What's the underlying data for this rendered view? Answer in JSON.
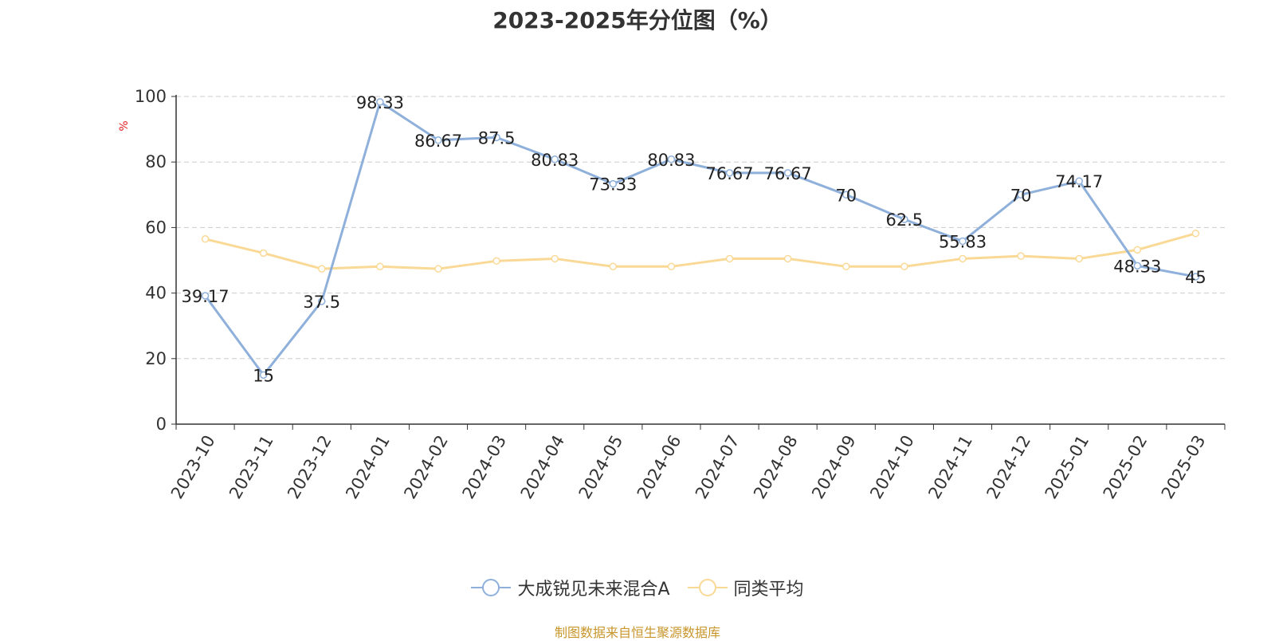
{
  "chart_data": {
    "type": "line",
    "title": "2023-2025年分位图（%）",
    "ylabel": "%",
    "xlabel": "",
    "ylim": [
      0,
      100
    ],
    "yticks": [
      0,
      20,
      40,
      60,
      80,
      100
    ],
    "grid": true,
    "legend_position": "bottom",
    "categories": [
      "2023-10",
      "2023-11",
      "2023-12",
      "2024-01",
      "2024-02",
      "2024-03",
      "2024-04",
      "2024-05",
      "2024-06",
      "2024-07",
      "2024-08",
      "2024-09",
      "2024-10",
      "2024-11",
      "2024-12",
      "2025-01",
      "2025-02",
      "2025-03"
    ],
    "series": [
      {
        "name": "大成锐见未来混合A",
        "color": "#8eb0db",
        "labels": [
          "39.17",
          "15",
          "37.5",
          "98.33",
          "86.67",
          "87.5",
          "80.83",
          "73.33",
          "80.83",
          "76.67",
          "76.67",
          "70",
          "62.5",
          "55.83",
          "70",
          "74.17",
          "48.33",
          "45"
        ],
        "values": [
          39.17,
          15,
          37.5,
          98.33,
          86.67,
          87.5,
          80.83,
          73.33,
          80.83,
          76.67,
          76.67,
          70,
          62.5,
          55.83,
          70,
          74.17,
          48.33,
          45
        ]
      },
      {
        "name": "同类平均",
        "color": "#fad996",
        "values": [
          56.5,
          52.2,
          47.4,
          48.1,
          47.4,
          49.8,
          50.5,
          48.1,
          48.1,
          50.5,
          50.5,
          48.1,
          48.1,
          50.5,
          51.3,
          50.5,
          53.2,
          58.2
        ]
      }
    ]
  },
  "source_note": "制图数据来自恒生聚源数据库"
}
